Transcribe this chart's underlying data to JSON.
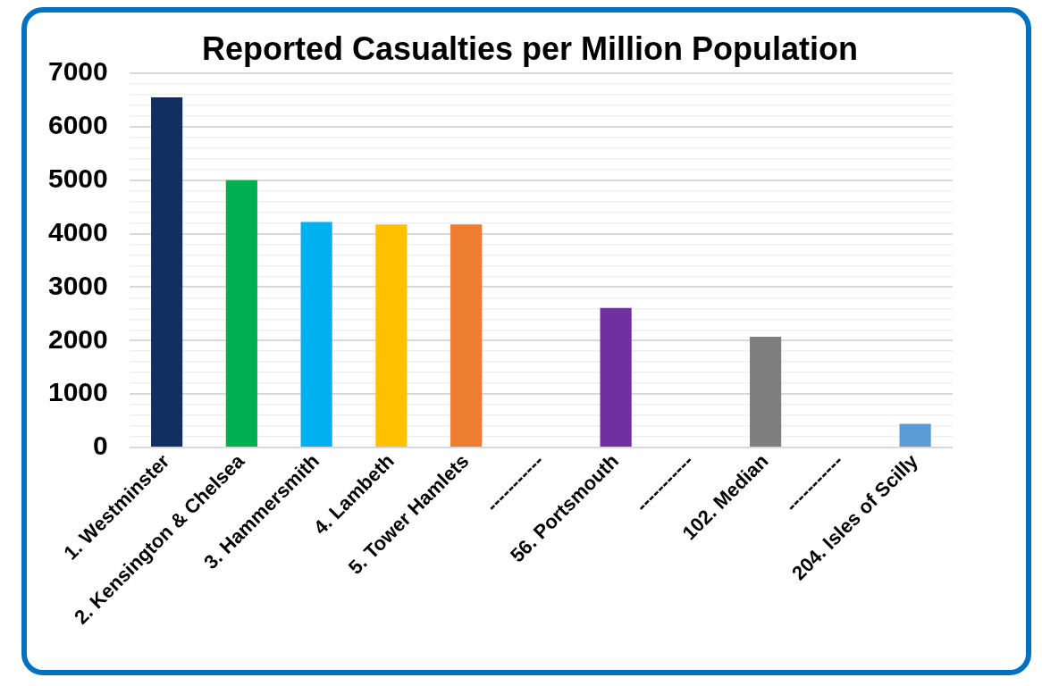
{
  "chart_data": {
    "type": "bar",
    "title": "Reported Casualties per Million Population",
    "categories": [
      "1. Westminster",
      "2. Kensington & Chelsea",
      "3. Hammersmith",
      "4. Lambeth",
      "5. Tower Hamlets",
      "-----------",
      "56. Portsmouth",
      "-----------",
      "102. Median",
      "-----------",
      "204. Isles of Scilly"
    ],
    "values": [
      6550,
      5000,
      4220,
      4170,
      4170,
      null,
      2610,
      null,
      2070,
      null,
      440
    ],
    "colors": [
      "#0f3060",
      "#00b050",
      "#00b0f0",
      "#ffc000",
      "#ed7d31",
      "#ffffff",
      "#7030a0",
      "#ffffff",
      "#7f7f7f",
      "#ffffff",
      "#5b9bd5"
    ],
    "ylim": [
      0,
      7000
    ],
    "yticks": [
      0,
      {
        "value": 200,
        "label": null
      },
      {
        "value": 400,
        "label": null
      },
      {
        "value": 600,
        "label": null
      },
      {
        "value": 800,
        "label": null
      },
      1000,
      {
        "value": 1200,
        "label": null
      },
      {
        "value": 1400,
        "label": null
      },
      {
        "value": 1600,
        "label": null
      },
      {
        "value": 1800,
        "label": null
      },
      2000,
      {
        "value": 2200,
        "label": null
      },
      {
        "value": 2400,
        "label": null
      },
      {
        "value": 2600,
        "label": null
      },
      {
        "value": 2800,
        "label": null
      },
      3000,
      {
        "value": 3200,
        "label": null
      },
      {
        "value": 3400,
        "label": null
      },
      {
        "value": 3600,
        "label": null
      },
      {
        "value": 3800,
        "label": null
      },
      4000,
      {
        "value": 4200,
        "label": null
      },
      {
        "value": 4400,
        "label": null
      },
      {
        "value": 4600,
        "label": null
      },
      {
        "value": 4800,
        "label": null
      },
      5000,
      {
        "value": 5200,
        "label": null
      },
      {
        "value": 5400,
        "label": null
      },
      {
        "value": 5600,
        "label": null
      },
      {
        "value": 5800,
        "label": null
      },
      6000,
      {
        "value": 6200,
        "label": null
      },
      {
        "value": 6400,
        "label": null
      },
      {
        "value": 6600,
        "label": null
      },
      {
        "value": 6800,
        "label": null
      },
      7000
    ],
    "grid": "y",
    "legend": false
  }
}
